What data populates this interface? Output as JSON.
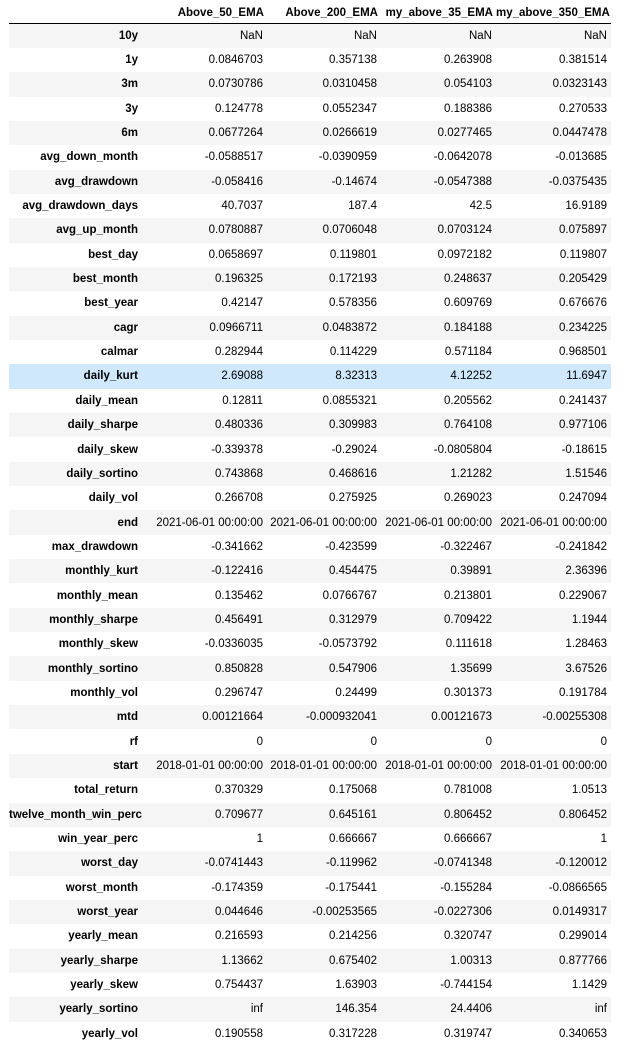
{
  "table": {
    "columns": [
      "",
      "Above_50_EMA",
      "Above_200_EMA",
      "my_above_35_EMA",
      "my_above_350_EMA"
    ],
    "highlighted_row": "daily_kurt",
    "highlight_color": "#cfe8fc",
    "stripe_color": "#f5f5f5",
    "rows": [
      {
        "label": "10y",
        "values": [
          "NaN",
          "NaN",
          "NaN",
          "NaN"
        ]
      },
      {
        "label": "1y",
        "values": [
          "0.0846703",
          "0.357138",
          "0.263908",
          "0.381514"
        ]
      },
      {
        "label": "3m",
        "values": [
          "0.0730786",
          "0.0310458",
          "0.054103",
          "0.0323143"
        ]
      },
      {
        "label": "3y",
        "values": [
          "0.124778",
          "0.0552347",
          "0.188386",
          "0.270533"
        ]
      },
      {
        "label": "6m",
        "values": [
          "0.0677264",
          "0.0266619",
          "0.0277465",
          "0.0447478"
        ]
      },
      {
        "label": "avg_down_month",
        "values": [
          "-0.0588517",
          "-0.0390959",
          "-0.0642078",
          "-0.013685"
        ]
      },
      {
        "label": "avg_drawdown",
        "values": [
          "-0.058416",
          "-0.14674",
          "-0.0547388",
          "-0.0375435"
        ]
      },
      {
        "label": "avg_drawdown_days",
        "values": [
          "40.7037",
          "187.4",
          "42.5",
          "16.9189"
        ]
      },
      {
        "label": "avg_up_month",
        "values": [
          "0.0780887",
          "0.0706048",
          "0.0703124",
          "0.075897"
        ]
      },
      {
        "label": "best_day",
        "values": [
          "0.0658697",
          "0.119801",
          "0.0972182",
          "0.119807"
        ]
      },
      {
        "label": "best_month",
        "values": [
          "0.196325",
          "0.172193",
          "0.248637",
          "0.205429"
        ]
      },
      {
        "label": "best_year",
        "values": [
          "0.42147",
          "0.578356",
          "0.609769",
          "0.676676"
        ]
      },
      {
        "label": "cagr",
        "values": [
          "0.0966711",
          "0.0483872",
          "0.184188",
          "0.234225"
        ]
      },
      {
        "label": "calmar",
        "values": [
          "0.282944",
          "0.114229",
          "0.571184",
          "0.968501"
        ]
      },
      {
        "label": "daily_kurt",
        "values": [
          "2.69088",
          "8.32313",
          "4.12252",
          "11.6947"
        ]
      },
      {
        "label": "daily_mean",
        "values": [
          "0.12811",
          "0.0855321",
          "0.205562",
          "0.241437"
        ]
      },
      {
        "label": "daily_sharpe",
        "values": [
          "0.480336",
          "0.309983",
          "0.764108",
          "0.977106"
        ]
      },
      {
        "label": "daily_skew",
        "values": [
          "-0.339378",
          "-0.29024",
          "-0.0805804",
          "-0.18615"
        ]
      },
      {
        "label": "daily_sortino",
        "values": [
          "0.743868",
          "0.468616",
          "1.21282",
          "1.51546"
        ]
      },
      {
        "label": "daily_vol",
        "values": [
          "0.266708",
          "0.275925",
          "0.269023",
          "0.247094"
        ]
      },
      {
        "label": "end",
        "values": [
          "2021-06-01 00:00:00",
          "2021-06-01 00:00:00",
          "2021-06-01 00:00:00",
          "2021-06-01 00:00:00"
        ]
      },
      {
        "label": "max_drawdown",
        "values": [
          "-0.341662",
          "-0.423599",
          "-0.322467",
          "-0.241842"
        ]
      },
      {
        "label": "monthly_kurt",
        "values": [
          "-0.122416",
          "0.454475",
          "0.39891",
          "2.36396"
        ]
      },
      {
        "label": "monthly_mean",
        "values": [
          "0.135462",
          "0.0766767",
          "0.213801",
          "0.229067"
        ]
      },
      {
        "label": "monthly_sharpe",
        "values": [
          "0.456491",
          "0.312979",
          "0.709422",
          "1.1944"
        ]
      },
      {
        "label": "monthly_skew",
        "values": [
          "-0.0336035",
          "-0.0573792",
          "0.111618",
          "1.28463"
        ]
      },
      {
        "label": "monthly_sortino",
        "values": [
          "0.850828",
          "0.547906",
          "1.35699",
          "3.67526"
        ]
      },
      {
        "label": "monthly_vol",
        "values": [
          "0.296747",
          "0.24499",
          "0.301373",
          "0.191784"
        ]
      },
      {
        "label": "mtd",
        "values": [
          "0.00121664",
          "-0.000932041",
          "0.00121673",
          "-0.00255308"
        ]
      },
      {
        "label": "rf",
        "values": [
          "0",
          "0",
          "0",
          "0"
        ]
      },
      {
        "label": "start",
        "values": [
          "2018-01-01 00:00:00",
          "2018-01-01 00:00:00",
          "2018-01-01 00:00:00",
          "2018-01-01 00:00:00"
        ]
      },
      {
        "label": "total_return",
        "values": [
          "0.370329",
          "0.175068",
          "0.781008",
          "1.0513"
        ]
      },
      {
        "label": "twelve_month_win_perc",
        "values": [
          "0.709677",
          "0.645161",
          "0.806452",
          "0.806452"
        ]
      },
      {
        "label": "win_year_perc",
        "values": [
          "1",
          "0.666667",
          "0.666667",
          "1"
        ]
      },
      {
        "label": "worst_day",
        "values": [
          "-0.0741443",
          "-0.119962",
          "-0.0741348",
          "-0.120012"
        ]
      },
      {
        "label": "worst_month",
        "values": [
          "-0.174359",
          "-0.175441",
          "-0.155284",
          "-0.0866565"
        ]
      },
      {
        "label": "worst_year",
        "values": [
          "0.044646",
          "-0.00253565",
          "-0.0227306",
          "0.0149317"
        ]
      },
      {
        "label": "yearly_mean",
        "values": [
          "0.216593",
          "0.214256",
          "0.320747",
          "0.299014"
        ]
      },
      {
        "label": "yearly_sharpe",
        "values": [
          "1.13662",
          "0.675402",
          "1.00313",
          "0.877766"
        ]
      },
      {
        "label": "yearly_skew",
        "values": [
          "0.754437",
          "1.63903",
          "-0.744154",
          "1.1429"
        ]
      },
      {
        "label": "yearly_sortino",
        "values": [
          "inf",
          "146.354",
          "24.4406",
          "inf"
        ]
      },
      {
        "label": "yearly_vol",
        "values": [
          "0.190558",
          "0.317228",
          "0.319747",
          "0.340653"
        ]
      }
    ]
  }
}
